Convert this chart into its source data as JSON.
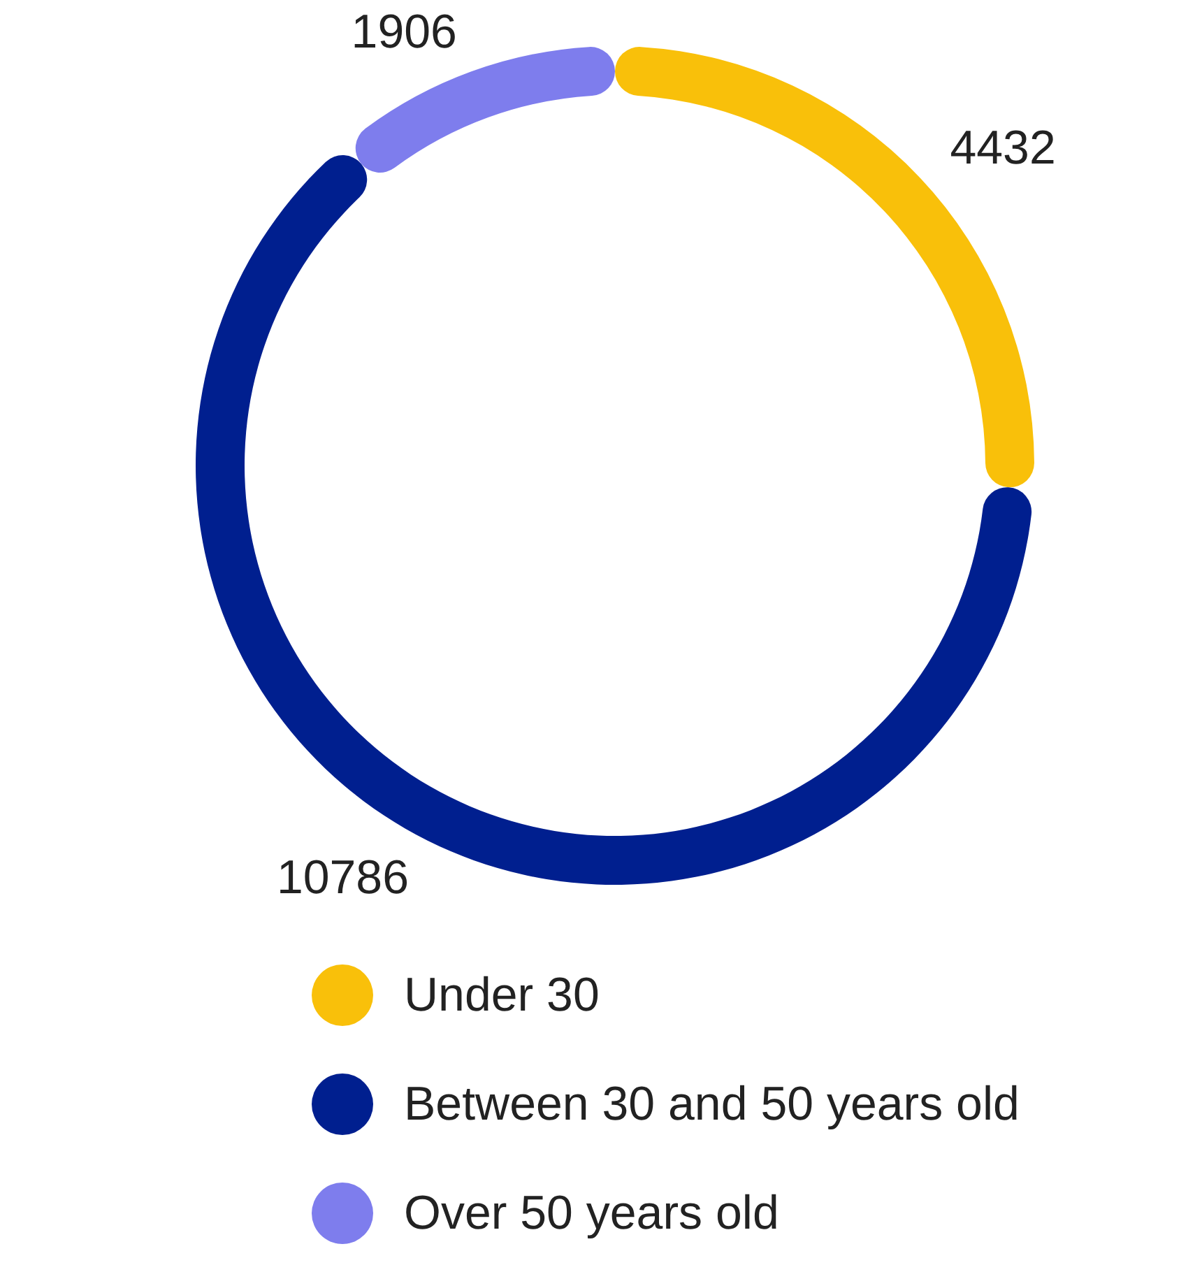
{
  "chart_data": {
    "type": "donut",
    "categories": [
      "Under 30",
      "Between 30 and 50 years old",
      "Over 50 years old"
    ],
    "values": [
      4432,
      10786,
      1906
    ],
    "colors": [
      "#f9c00a",
      "#001f8f",
      "#7e7ded"
    ],
    "data_labels": true,
    "legend": "bottom"
  }
}
